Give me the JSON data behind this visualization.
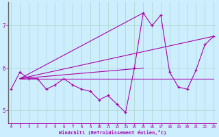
{
  "xlabel": "Windchill (Refroidissement éolien,°C)",
  "bg_color": "#cceeff",
  "grid_color": "#b0d8cc",
  "line_color": "#aa00aa",
  "x_values": [
    0,
    1,
    2,
    3,
    4,
    5,
    6,
    7,
    8,
    9,
    10,
    11,
    12,
    13,
    14,
    15,
    16,
    17,
    18,
    19,
    20,
    21,
    22,
    23
  ],
  "y_main": [
    5.5,
    5.9,
    5.75,
    5.75,
    5.5,
    5.6,
    5.75,
    5.6,
    5.5,
    5.45,
    5.25,
    5.35,
    5.15,
    4.95,
    6.0,
    7.3,
    7.0,
    7.25,
    5.9,
    5.55,
    5.5,
    5.95,
    6.55,
    6.75
  ],
  "ref_lines": [
    [
      [
        1,
        23
      ],
      [
        5.75,
        6.75
      ]
    ],
    [
      [
        1,
        23
      ],
      [
        5.75,
        5.75
      ]
    ],
    [
      [
        1,
        15
      ],
      [
        5.75,
        6.0
      ]
    ],
    [
      [
        1,
        15
      ],
      [
        5.75,
        7.3
      ]
    ]
  ],
  "ylim": [
    4.7,
    7.55
  ],
  "xlim": [
    -0.3,
    23.3
  ],
  "yticks": [
    5,
    6,
    7
  ],
  "xticks": [
    0,
    1,
    2,
    3,
    4,
    5,
    6,
    7,
    8,
    9,
    10,
    11,
    12,
    13,
    14,
    15,
    16,
    17,
    18,
    19,
    20,
    21,
    22,
    23
  ]
}
